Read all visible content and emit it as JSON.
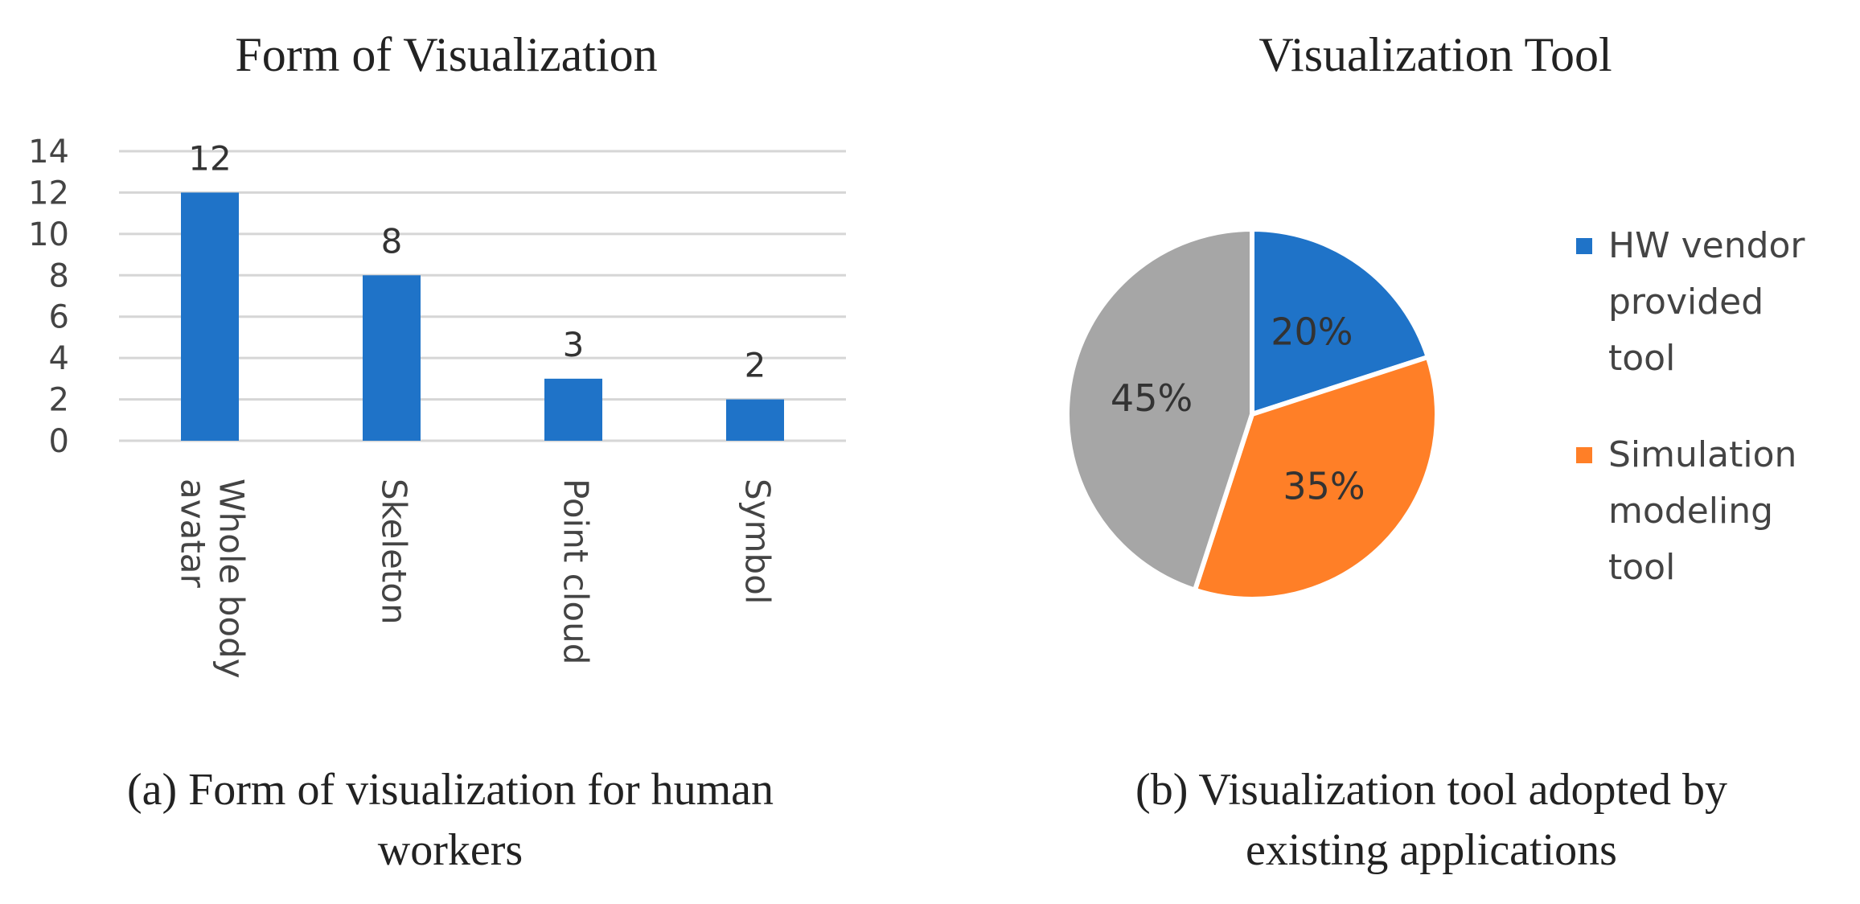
{
  "chart_data": [
    {
      "type": "bar",
      "title": "Form of Visualization",
      "caption_line1": "(a) Form of visualization for human",
      "caption_line2": "workers",
      "categories": [
        "Whole body avatar",
        "Skeleton",
        "Point cloud",
        "Symbol"
      ],
      "category_lines": [
        [
          "Whole body",
          "avatar"
        ],
        [
          "Skeleton"
        ],
        [
          "Point cloud"
        ],
        [
          "Symbol"
        ]
      ],
      "values": [
        12,
        8,
        3,
        2
      ],
      "data_labels": [
        "12",
        "8",
        "3",
        "2"
      ],
      "yticks": [
        0,
        2,
        4,
        6,
        8,
        10,
        12,
        14
      ],
      "ytick_labels": [
        "0",
        "2",
        "4",
        "6",
        "8",
        "10",
        "12",
        "14"
      ],
      "ylim": [
        0,
        14
      ],
      "grid": true,
      "xlabel": "",
      "ylabel": "",
      "color": "#1f73c8",
      "gridline_color": "#d6d6d6"
    },
    {
      "type": "pie",
      "title": "Visualization Tool",
      "caption_line1": "(b) Visualization tool adopted by",
      "caption_line2": "existing applications",
      "legend_position": "right",
      "slices": [
        {
          "name": "HW vendor provided tool",
          "name_lines": [
            "HW vendor",
            "provided",
            "tool"
          ],
          "value": 20,
          "label": "20%",
          "color": "#1f73c8"
        },
        {
          "name": "Simulation modeling tool",
          "name_lines": [
            "Simulation",
            "modeling",
            "tool"
          ],
          "value": 35,
          "label": "35%",
          "color": "#ff7f27"
        },
        {
          "name": "",
          "name_lines": [],
          "value": 45,
          "label": "45%",
          "color": "#a6a6a6"
        }
      ]
    }
  ]
}
